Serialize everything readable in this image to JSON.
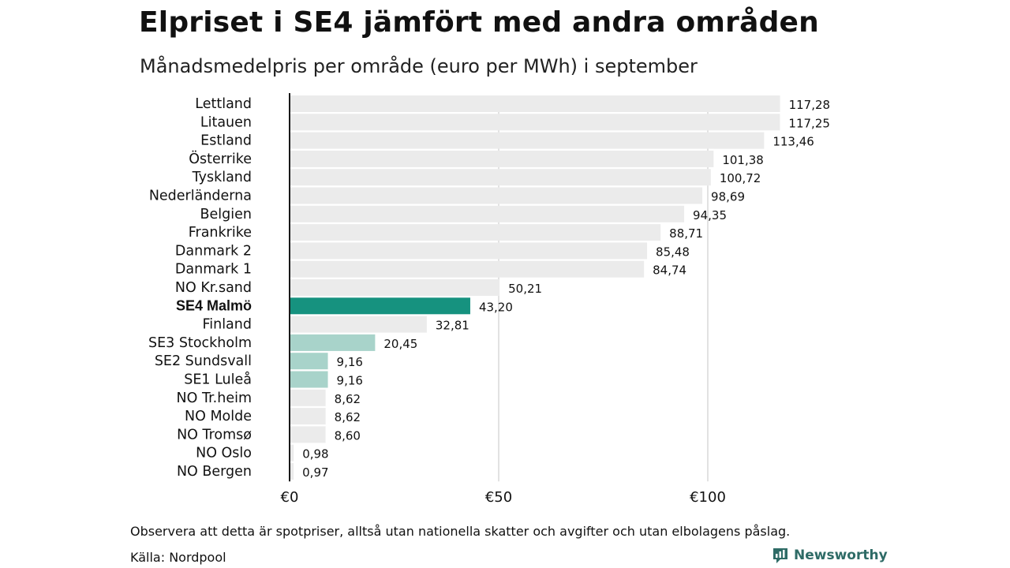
{
  "header": {
    "title": "Elpriset i SE4 jämfört med andra områden",
    "subtitle": "Månadsmedelpris per område (euro per MWh) i september"
  },
  "footer": {
    "note": "Observera att detta är spotpriser, alltså utan nationella skatter och avgifter och utan elbolagens påslag.",
    "source": "Källa: Nordpool",
    "brand": "Newsworthy"
  },
  "colors": {
    "default_bar": "#ebebeb",
    "highlight_bar": "#16927f",
    "sweden_bar": "#a8d3ca",
    "axis_line": "#1a1a1a",
    "grid": "#d9d9d9",
    "brand": "#2e6b66"
  },
  "chart_data": {
    "type": "bar",
    "orientation": "horizontal",
    "xlim": [
      0,
      120
    ],
    "xticks": [
      0,
      50,
      100
    ],
    "xtick_labels": [
      "€0",
      "€50",
      "€100"
    ],
    "grid": true,
    "categories": [
      "Lettland",
      "Litauen",
      "Estland",
      "Österrike",
      "Tyskland",
      "Nederländerna",
      "Belgien",
      "Frankrike",
      "Danmark  2",
      "Danmark  1",
      "NO Kr.sand",
      "SE4 Malmö",
      "Finland",
      "SE3  Stockholm",
      "SE2  Sundsvall",
      "SE1  Luleå",
      "NO Tr.heim",
      "NO Molde",
      "NO Tromsø",
      "NO Oslo",
      "NO Bergen"
    ],
    "values": [
      117.28,
      117.25,
      113.46,
      101.38,
      100.72,
      98.69,
      94.35,
      88.71,
      85.48,
      84.74,
      50.21,
      43.2,
      32.81,
      20.45,
      9.16,
      9.16,
      8.62,
      8.62,
      8.6,
      0.98,
      0.97
    ],
    "value_labels": [
      "117,28",
      "117,25",
      "113,46",
      "101,38",
      "100,72",
      "98,69",
      "94,35",
      "88,71",
      "85,48",
      "84,74",
      "50,21",
      "43,20",
      "32,81",
      "20,45",
      "9,16",
      "9,16",
      "8,62",
      "8,62",
      "8,60",
      "0,98",
      "0,97"
    ],
    "highlight": [
      "default",
      "default",
      "default",
      "default",
      "default",
      "default",
      "default",
      "default",
      "default",
      "default",
      "default",
      "primary",
      "default",
      "sweden",
      "sweden",
      "sweden",
      "default",
      "default",
      "default",
      "default",
      "default"
    ]
  }
}
